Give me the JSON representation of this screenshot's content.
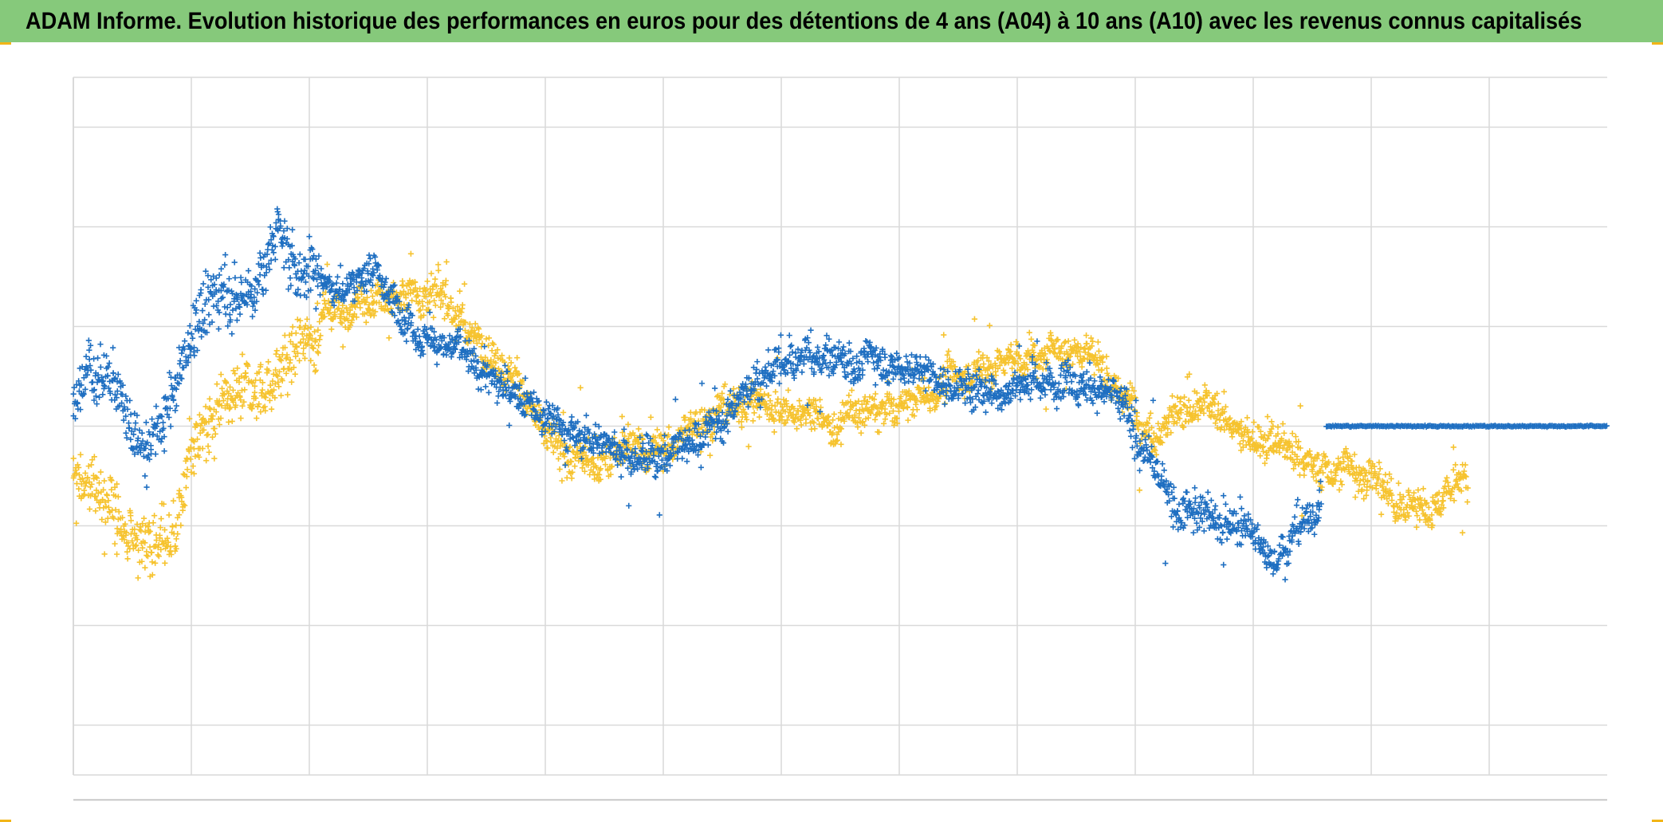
{
  "title": "ADAM Informe. Evolution historique des performances en euros pour des détentions de 4 ans (A04) à 10 ans (A10) avec les revenus connus capitalisés",
  "colors": {
    "title_background": "#86c97b",
    "corner_marks": "#f2b517",
    "gridline": "#d9d9d9",
    "series_a04": "#1f6fc1",
    "series_a10": "#f6c32f"
  },
  "chart_data": {
    "type": "scatter",
    "marker": "plus",
    "grid": true,
    "legend": "none",
    "xlim": [
      0,
      13
    ],
    "ylim": [
      -0.7,
      0.7
    ],
    "x_gridlines": [
      1,
      2,
      3,
      4,
      5,
      6,
      7,
      8,
      9,
      10,
      11,
      12
    ],
    "y_gridlines": [
      -0.6,
      -0.4,
      -0.2,
      0,
      0.2,
      0.4,
      0.6
    ],
    "series": [
      {
        "color": "#1f6fc1",
        "trend": [
          [
            0.0,
            0.04
          ],
          [
            0.15,
            0.12
          ],
          [
            0.35,
            0.1
          ],
          [
            0.5,
            -0.02
          ],
          [
            0.6,
            -0.06
          ],
          [
            0.75,
            0.0
          ],
          [
            0.9,
            0.1
          ],
          [
            1.05,
            0.22
          ],
          [
            1.25,
            0.27
          ],
          [
            1.45,
            0.25
          ],
          [
            1.6,
            0.3
          ],
          [
            1.75,
            0.4
          ],
          [
            1.85,
            0.33
          ],
          [
            2.0,
            0.32
          ],
          [
            2.15,
            0.31
          ],
          [
            2.3,
            0.3
          ],
          [
            2.45,
            0.31
          ],
          [
            2.6,
            0.29
          ],
          [
            2.75,
            0.24
          ],
          [
            2.9,
            0.21
          ],
          [
            3.05,
            0.17
          ],
          [
            3.25,
            0.14
          ],
          [
            3.45,
            0.1
          ],
          [
            3.65,
            0.08
          ],
          [
            3.85,
            0.06
          ],
          [
            4.0,
            0.02
          ],
          [
            4.15,
            -0.01
          ],
          [
            4.35,
            -0.02
          ],
          [
            4.55,
            -0.03
          ],
          [
            4.75,
            -0.06
          ],
          [
            4.95,
            -0.06
          ],
          [
            5.15,
            -0.04
          ],
          [
            5.35,
            -0.01
          ],
          [
            5.55,
            0.02
          ],
          [
            5.75,
            0.08
          ],
          [
            5.95,
            0.12
          ],
          [
            6.15,
            0.13
          ],
          [
            6.35,
            0.14
          ],
          [
            6.55,
            0.13
          ],
          [
            6.75,
            0.14
          ],
          [
            6.95,
            0.13
          ],
          [
            7.15,
            0.12
          ],
          [
            7.35,
            0.09
          ],
          [
            7.55,
            0.08
          ],
          [
            7.75,
            0.08
          ],
          [
            7.95,
            0.08
          ],
          [
            8.15,
            0.09
          ],
          [
            8.35,
            0.1
          ],
          [
            8.5,
            0.11
          ],
          [
            8.7,
            0.07
          ],
          [
            8.9,
            0.02
          ],
          [
            9.05,
            -0.07
          ],
          [
            9.25,
            -0.12
          ],
          [
            9.45,
            -0.15
          ],
          [
            9.65,
            -0.18
          ],
          [
            9.85,
            -0.2
          ],
          [
            10.05,
            -0.24
          ],
          [
            10.2,
            -0.25
          ],
          [
            10.35,
            -0.21
          ],
          [
            10.5,
            -0.16
          ],
          [
            10.58,
            -0.14
          ]
        ],
        "flat_segment": {
          "x": [
            10.62,
            13.0
          ],
          "y": 0.0
        }
      },
      {
        "color": "#f6c32f",
        "trend": [
          [
            0.0,
            -0.1
          ],
          [
            0.2,
            -0.13
          ],
          [
            0.4,
            -0.19
          ],
          [
            0.55,
            -0.24
          ],
          [
            0.7,
            -0.22
          ],
          [
            0.85,
            -0.21
          ],
          [
            1.0,
            -0.05
          ],
          [
            1.15,
            0.02
          ],
          [
            1.3,
            0.03
          ],
          [
            1.5,
            0.06
          ],
          [
            1.7,
            0.1
          ],
          [
            1.85,
            0.14
          ],
          [
            2.0,
            0.19
          ],
          [
            2.2,
            0.22
          ],
          [
            2.4,
            0.25
          ],
          [
            2.6,
            0.26
          ],
          [
            2.8,
            0.27
          ],
          [
            3.0,
            0.26
          ],
          [
            3.2,
            0.23
          ],
          [
            3.35,
            0.19
          ],
          [
            3.5,
            0.16
          ],
          [
            3.7,
            0.12
          ],
          [
            3.85,
            0.07
          ],
          [
            4.0,
            -0.02
          ],
          [
            4.2,
            -0.06
          ],
          [
            4.4,
            -0.07
          ],
          [
            4.6,
            -0.07
          ],
          [
            4.8,
            -0.06
          ],
          [
            5.0,
            -0.04
          ],
          [
            5.2,
            -0.01
          ],
          [
            5.4,
            0.01
          ],
          [
            5.6,
            0.04
          ],
          [
            5.8,
            0.05
          ],
          [
            6.0,
            0.04
          ],
          [
            6.2,
            0.03
          ],
          [
            6.4,
            0.01
          ],
          [
            6.6,
            0.02
          ],
          [
            6.8,
            0.03
          ],
          [
            7.0,
            0.04
          ],
          [
            7.2,
            0.07
          ],
          [
            7.4,
            0.09
          ],
          [
            7.6,
            0.1
          ],
          [
            7.8,
            0.12
          ],
          [
            8.0,
            0.13
          ],
          [
            8.2,
            0.14
          ],
          [
            8.4,
            0.16
          ],
          [
            8.55,
            0.17
          ],
          [
            8.7,
            0.12
          ],
          [
            8.85,
            0.08
          ],
          [
            9.0,
            0.03
          ],
          [
            9.15,
            0.0
          ],
          [
            9.35,
            0.02
          ],
          [
            9.55,
            0.03
          ],
          [
            9.75,
            0.02
          ],
          [
            9.95,
            -0.01
          ],
          [
            10.15,
            -0.04
          ],
          [
            10.35,
            -0.07
          ],
          [
            10.55,
            -0.08
          ],
          [
            10.75,
            -0.08
          ],
          [
            10.95,
            -0.1
          ],
          [
            11.15,
            -0.14
          ],
          [
            11.35,
            -0.16
          ],
          [
            11.55,
            -0.15
          ],
          [
            11.7,
            -0.12
          ],
          [
            11.82,
            -0.11
          ]
        ]
      }
    ]
  }
}
